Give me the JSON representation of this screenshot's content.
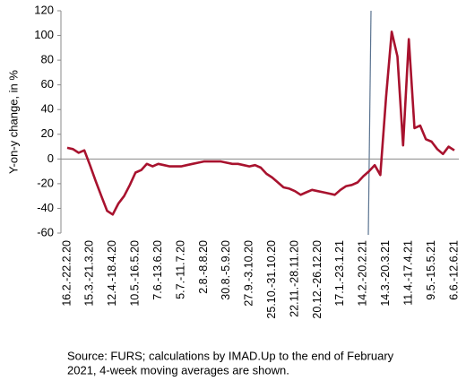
{
  "chart_data": {
    "type": "line",
    "y_label": "Y-on-y change, in %",
    "source": [
      "Source: FURS; calculations by IMAD.Up to the end of February",
      "2021, 4-week moving averages are shown."
    ],
    "categories": [
      "16.2.-22.2.20",
      null,
      null,
      null,
      "15.3.-21.3.20",
      null,
      null,
      null,
      "12.4.-18.4.20",
      null,
      null,
      null,
      "10.5.-16.5.20",
      null,
      null,
      null,
      "7.6.-13.6.20",
      null,
      null,
      null,
      "5.7.-11.7.20",
      null,
      null,
      null,
      "2.8.-8.8.20",
      null,
      null,
      null,
      "30.8.-5.9.20",
      null,
      null,
      null,
      "27.9.-3.10.20",
      null,
      null,
      null,
      "25.10.-31.10.20",
      null,
      null,
      null,
      "22.11.-28.11.20",
      null,
      null,
      null,
      "20.12.-26.12.20",
      null,
      null,
      null,
      "17.1.-23.1.21",
      null,
      null,
      null,
      "14.2.-20.2.21",
      null,
      null,
      null,
      "14.3.-20.3.21",
      null,
      null,
      null,
      "11.4.-17.4.21",
      null,
      null,
      null,
      "9.5.-15.5.21",
      null,
      null,
      null,
      "6.6.-12.6.21"
    ],
    "series": [
      {
        "name": "Y-on-y change",
        "color": "#a8122e",
        "values": [
          9,
          8,
          5,
          7,
          -5,
          -18,
          -30,
          -42,
          -45,
          -36,
          -30,
          -21,
          -11,
          -9,
          -4,
          -6,
          -4,
          -5,
          -6,
          -6,
          -6,
          -5,
          -4,
          -3,
          -2,
          -2,
          -2,
          -2,
          -3,
          -4,
          -4,
          -5,
          -6,
          -5,
          -7,
          -12,
          -15,
          -19,
          -23,
          -24,
          -26,
          -29,
          -27,
          -25,
          -26,
          -27,
          -28,
          -29,
          -25,
          -22,
          -21,
          -19,
          -14,
          -10,
          -5,
          -13,
          50,
          103,
          83,
          11,
          97,
          25,
          27,
          16,
          14,
          8,
          4,
          10,
          7
        ]
      }
    ],
    "ylim": [
      -60,
      120
    ],
    "yticks": [
      -60,
      -40,
      -20,
      0,
      20,
      40,
      60,
      80,
      100,
      120
    ],
    "grid": false
  }
}
